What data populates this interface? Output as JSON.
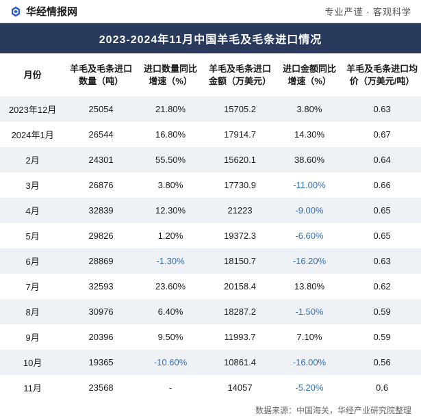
{
  "header": {
    "brand_name": "华经情报网",
    "tagline": "专业严谨  ·  客观科学",
    "logo_color": "#2a5bd7"
  },
  "title": "2023-2024年11月中国羊毛及毛条进口情况",
  "title_bg": "#2a3a5c",
  "title_color": "#ffffff",
  "alt_row_bg": "#eef1f5",
  "neg_color": "#2f6fb3",
  "columns": [
    "月份",
    "羊毛及毛条进口数量（吨）",
    "进口数量同比增速（%）",
    "羊毛及毛条进口金额（万美元）",
    "进口金额同比增速（%）",
    "羊毛及毛条进口均价（万美元/吨）"
  ],
  "rows": [
    {
      "month": "2023年12月",
      "qty": "25054",
      "qty_g": "21.80%",
      "qty_g_neg": false,
      "amt": "15705.2",
      "amt_g": "3.80%",
      "amt_g_neg": false,
      "price": "0.63"
    },
    {
      "month": "2024年1月",
      "qty": "26544",
      "qty_g": "16.80%",
      "qty_g_neg": false,
      "amt": "17914.7",
      "amt_g": "14.30%",
      "amt_g_neg": false,
      "price": "0.67"
    },
    {
      "month": "2月",
      "qty": "24301",
      "qty_g": "55.50%",
      "qty_g_neg": false,
      "amt": "15620.1",
      "amt_g": "38.60%",
      "amt_g_neg": false,
      "price": "0.64"
    },
    {
      "month": "3月",
      "qty": "26876",
      "qty_g": "3.80%",
      "qty_g_neg": false,
      "amt": "17730.9",
      "amt_g": "-11.00%",
      "amt_g_neg": true,
      "price": "0.66"
    },
    {
      "month": "4月",
      "qty": "32839",
      "qty_g": "12.30%",
      "qty_g_neg": false,
      "amt": "21223",
      "amt_g": "-9.00%",
      "amt_g_neg": true,
      "price": "0.65"
    },
    {
      "month": "5月",
      "qty": "29826",
      "qty_g": "1.20%",
      "qty_g_neg": false,
      "amt": "19372.3",
      "amt_g": "-6.60%",
      "amt_g_neg": true,
      "price": "0.65"
    },
    {
      "month": "6月",
      "qty": "28869",
      "qty_g": "-1.30%",
      "qty_g_neg": true,
      "amt": "18150.7",
      "amt_g": "-16.20%",
      "amt_g_neg": true,
      "price": "0.63"
    },
    {
      "month": "7月",
      "qty": "32593",
      "qty_g": "23.60%",
      "qty_g_neg": false,
      "amt": "20158.4",
      "amt_g": "13.80%",
      "amt_g_neg": false,
      "price": "0.62"
    },
    {
      "month": "8月",
      "qty": "30976",
      "qty_g": "6.40%",
      "qty_g_neg": false,
      "amt": "18287.2",
      "amt_g": "-1.50%",
      "amt_g_neg": true,
      "price": "0.59"
    },
    {
      "month": "9月",
      "qty": "20396",
      "qty_g": "9.50%",
      "qty_g_neg": false,
      "amt": "11993.7",
      "amt_g": "7.10%",
      "amt_g_neg": false,
      "price": "0.59"
    },
    {
      "month": "10月",
      "qty": "19365",
      "qty_g": "-10.60%",
      "qty_g_neg": true,
      "amt": "10861.4",
      "amt_g": "-16.00%",
      "amt_g_neg": true,
      "price": "0.56"
    },
    {
      "month": "11月",
      "qty": "23568",
      "qty_g": "-",
      "qty_g_neg": false,
      "amt": "14057",
      "amt_g": "-5.20%",
      "amt_g_neg": true,
      "price": "0.6"
    }
  ],
  "source": "数据来源：中国海关，华经产业研究院整理"
}
